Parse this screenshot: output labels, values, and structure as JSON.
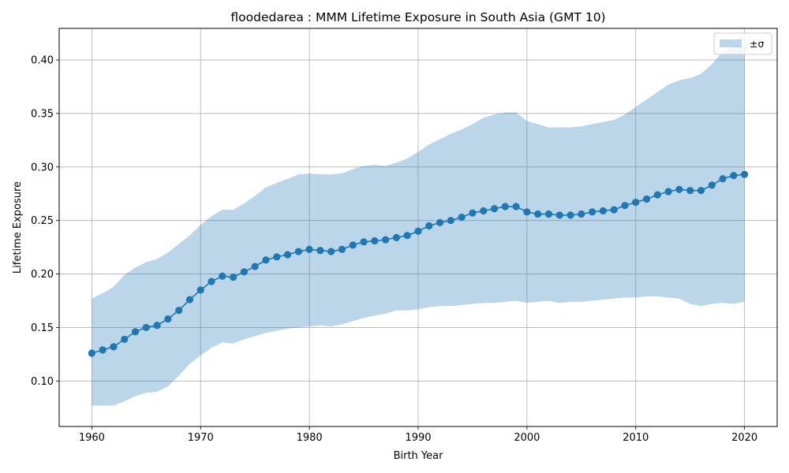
{
  "chart_data": {
    "type": "line",
    "title": "floodedarea : MMM Lifetime Exposure in South Asia (GMT 10)",
    "xlabel": "Birth Year",
    "ylabel": "Lifetime Exposure",
    "xlim": [
      1957,
      2023
    ],
    "ylim": [
      0.0575,
      0.4295
    ],
    "xticks": [
      1960,
      1970,
      1980,
      1990,
      2000,
      2010,
      2020
    ],
    "yticks": [
      0.1,
      0.15,
      0.2,
      0.25,
      0.3,
      0.35,
      0.4
    ],
    "ytick_labels": [
      "0.10",
      "0.15",
      "0.20",
      "0.25",
      "0.30",
      "0.35",
      "0.40"
    ],
    "grid": true,
    "legend": {
      "position": "top-right",
      "entries": [
        "±σ"
      ]
    },
    "colors": {
      "line": "#1f77b4",
      "band": "#1f77b4",
      "band_opacity": 0.3,
      "grid": "#b0b0b0"
    },
    "x": [
      1960,
      1961,
      1962,
      1963,
      1964,
      1965,
      1966,
      1967,
      1968,
      1969,
      1970,
      1971,
      1972,
      1973,
      1974,
      1975,
      1976,
      1977,
      1978,
      1979,
      1980,
      1981,
      1982,
      1983,
      1984,
      1985,
      1986,
      1987,
      1988,
      1989,
      1990,
      1991,
      1992,
      1993,
      1994,
      1995,
      1996,
      1997,
      1998,
      1999,
      2000,
      2001,
      2002,
      2003,
      2004,
      2005,
      2006,
      2007,
      2008,
      2009,
      2010,
      2011,
      2012,
      2013,
      2014,
      2015,
      2016,
      2017,
      2018,
      2019,
      2020
    ],
    "series": [
      {
        "name": "mean",
        "values": [
          0.126,
          0.129,
          0.132,
          0.139,
          0.146,
          0.15,
          0.152,
          0.158,
          0.166,
          0.176,
          0.185,
          0.193,
          0.198,
          0.197,
          0.202,
          0.207,
          0.213,
          0.216,
          0.218,
          0.221,
          0.223,
          0.222,
          0.221,
          0.223,
          0.227,
          0.23,
          0.231,
          0.232,
          0.234,
          0.236,
          0.24,
          0.245,
          0.248,
          0.25,
          0.253,
          0.257,
          0.259,
          0.261,
          0.263,
          0.263,
          0.258,
          0.256,
          0.256,
          0.255,
          0.255,
          0.256,
          0.258,
          0.259,
          0.26,
          0.264,
          0.267,
          0.27,
          0.274,
          0.277,
          0.279,
          0.278,
          0.278,
          0.283,
          0.289,
          0.292,
          0.293
        ]
      },
      {
        "name": "±σ",
        "upper": [
          0.177,
          0.182,
          0.188,
          0.199,
          0.206,
          0.211,
          0.214,
          0.22,
          0.228,
          0.236,
          0.246,
          0.254,
          0.26,
          0.26,
          0.266,
          0.273,
          0.281,
          0.285,
          0.289,
          0.293,
          0.294,
          0.293,
          0.293,
          0.294,
          0.298,
          0.301,
          0.302,
          0.301,
          0.304,
          0.308,
          0.314,
          0.321,
          0.326,
          0.331,
          0.335,
          0.34,
          0.346,
          0.349,
          0.351,
          0.351,
          0.343,
          0.34,
          0.337,
          0.337,
          0.337,
          0.338,
          0.34,
          0.342,
          0.344,
          0.349,
          0.356,
          0.363,
          0.37,
          0.377,
          0.381,
          0.383,
          0.387,
          0.396,
          0.408,
          0.413,
          0.413
        ],
        "lower": [
          0.077,
          0.077,
          0.077,
          0.081,
          0.086,
          0.089,
          0.09,
          0.095,
          0.105,
          0.116,
          0.124,
          0.131,
          0.136,
          0.135,
          0.139,
          0.142,
          0.145,
          0.147,
          0.149,
          0.15,
          0.151,
          0.152,
          0.151,
          0.153,
          0.156,
          0.159,
          0.161,
          0.163,
          0.166,
          0.166,
          0.167,
          0.169,
          0.17,
          0.17,
          0.171,
          0.172,
          0.173,
          0.173,
          0.174,
          0.175,
          0.173,
          0.174,
          0.175,
          0.173,
          0.174,
          0.174,
          0.175,
          0.176,
          0.177,
          0.178,
          0.178,
          0.179,
          0.179,
          0.178,
          0.177,
          0.172,
          0.17,
          0.172,
          0.173,
          0.172,
          0.174
        ]
      }
    ]
  }
}
